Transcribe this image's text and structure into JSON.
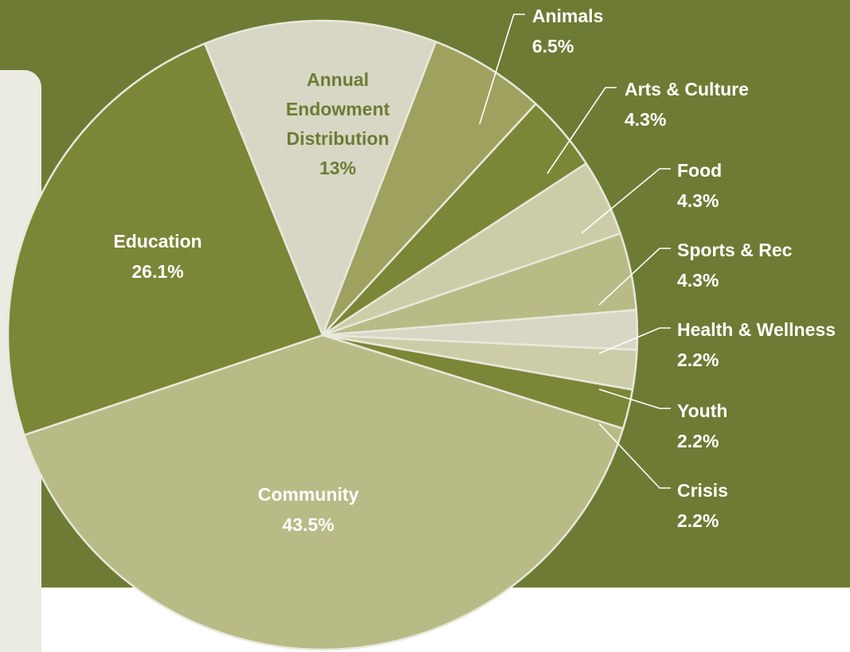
{
  "chart_data": {
    "type": "pie",
    "title": "",
    "slices": [
      {
        "label": "Annual Endowment Distribution",
        "lines": [
          "Annual",
          "Endowment",
          "Distribution"
        ],
        "percent_label": "13%",
        "value": 13.0,
        "color": "#d8d7c5",
        "label_color": "#6e7b34",
        "label_pos": "inside"
      },
      {
        "label": "Animals",
        "lines": [
          "Animals"
        ],
        "percent_label": "6.5%",
        "value": 6.5,
        "color": "#9ea25e",
        "label_pos": "outside"
      },
      {
        "label": "Arts & Culture",
        "lines": [
          "Arts & Culture"
        ],
        "percent_label": "4.3%",
        "value": 4.3,
        "color": "#7b8636",
        "label_pos": "outside"
      },
      {
        "label": "Food",
        "lines": [
          "Food"
        ],
        "percent_label": "4.3%",
        "value": 4.3,
        "color": "#cccda8",
        "label_pos": "outside"
      },
      {
        "label": "Sports & Rec",
        "lines": [
          "Sports & Rec"
        ],
        "percent_label": "4.3%",
        "value": 4.3,
        "color": "#b9bb86",
        "label_pos": "outside"
      },
      {
        "label": "Health & Wellness",
        "lines": [
          "Health & Wellness"
        ],
        "percent_label": "2.2%",
        "value": 2.2,
        "color": "#d8d7c5",
        "label_pos": "outside"
      },
      {
        "label": "Youth",
        "lines": [
          "Youth"
        ],
        "percent_label": "2.2%",
        "value": 2.2,
        "color": "#cccda8",
        "label_pos": "outside"
      },
      {
        "label": "Crisis",
        "lines": [
          "Crisis"
        ],
        "percent_label": "2.2%",
        "value": 2.2,
        "color": "#7b8636",
        "label_pos": "outside"
      },
      {
        "label": "Community",
        "lines": [
          "Community"
        ],
        "percent_label": "43.5%",
        "value": 43.5,
        "color": "#b9bb86",
        "label_color": "#ffffff",
        "label_pos": "inside"
      },
      {
        "label": "Education",
        "lines": [
          "Education"
        ],
        "percent_label": "26.1%",
        "value": 26.1,
        "color": "#7b8636",
        "label_color": "#ffffff",
        "label_pos": "inside"
      }
    ],
    "legend": "none"
  }
}
